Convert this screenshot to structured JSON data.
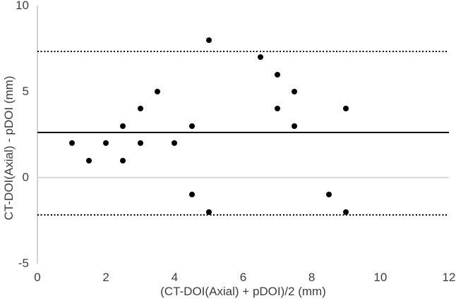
{
  "figure": {
    "background_color": "#ffffff",
    "text_color": "#3c3c3c",
    "axis_color": "#d2d2d2",
    "gridline_color": "#d9d9d9",
    "marker_color": "#000000",
    "line_color": "#000000"
  },
  "chart_data": {
    "type": "scatter",
    "title": "",
    "xlabel": "(CT-DOI(Axial) + pDOI)/2 (mm)",
    "ylabel": "CT-DOI(Axial) - pDOI (mm)",
    "xlim": [
      0,
      12
    ],
    "ylim": [
      -5,
      10
    ],
    "xticks": [
      0,
      2,
      4,
      6,
      8,
      10,
      12
    ],
    "yticks": [
      10,
      5,
      0,
      -5
    ],
    "legend": "none",
    "grid": "single horizontal gridline at y=0; light gray left y-axis line; no top, right or bottom frame",
    "points": [
      [
        1,
        2
      ],
      [
        1.5,
        1
      ],
      [
        2,
        2
      ],
      [
        2.5,
        1
      ],
      [
        2.5,
        3
      ],
      [
        3,
        2
      ],
      [
        3,
        4
      ],
      [
        3.5,
        5
      ],
      [
        4,
        2
      ],
      [
        4.5,
        -1
      ],
      [
        4.5,
        3
      ],
      [
        5,
        -2
      ],
      [
        5,
        8
      ],
      [
        6.5,
        7
      ],
      [
        7,
        4
      ],
      [
        7,
        6
      ],
      [
        7.5,
        3
      ],
      [
        7.5,
        5
      ],
      [
        8.5,
        -1
      ],
      [
        9,
        -2
      ],
      [
        9,
        4
      ]
    ],
    "reference_lines": [
      {
        "name": "mean",
        "y": 2.62,
        "style": "solid"
      },
      {
        "name": "upper-loa",
        "y": 7.35,
        "style": "dotted"
      },
      {
        "name": "lower-loa",
        "y": -2.18,
        "style": "dotted"
      }
    ],
    "gridlines_y": [
      0
    ]
  }
}
